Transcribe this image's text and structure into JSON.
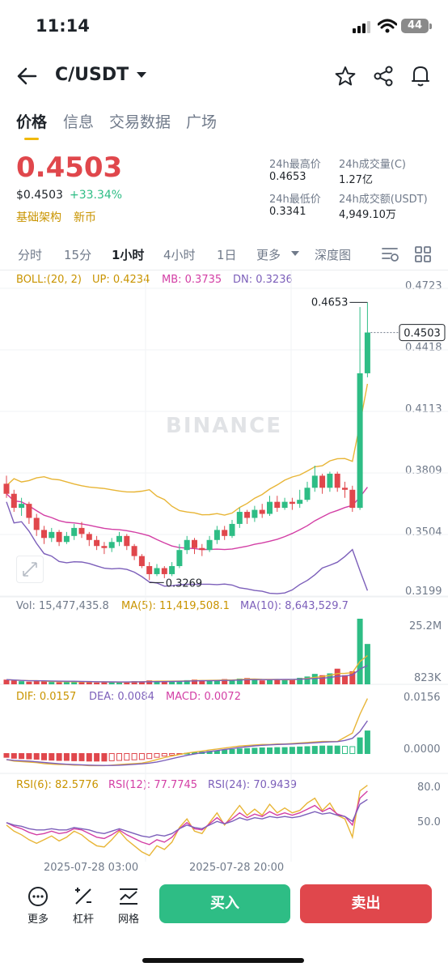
{
  "status_bar": {
    "time": "11:14",
    "battery": "44"
  },
  "header": {
    "title": "C/USDT"
  },
  "tabs": [
    "价格",
    "信息",
    "交易数据",
    "广场"
  ],
  "price": {
    "last": "0.4503",
    "usd": "$0.4503",
    "change": "+33.34%",
    "tags": [
      "基础架构",
      "新币"
    ]
  },
  "stats": {
    "high_label": "24h最高价",
    "high_value": "0.4653",
    "low_label": "24h最低价",
    "low_value": "0.3341",
    "vol_c_label": "24h成交量(C)",
    "vol_c_value": "1.27亿",
    "vol_usdt_label": "24h成交额(USDT)",
    "vol_usdt_value": "4,949.10万"
  },
  "intervals": [
    "分时",
    "15分",
    "1小时",
    "4小时",
    "1日",
    "更多",
    "深度图"
  ],
  "active_interval": "1小时",
  "boll_legend": {
    "boll": "BOLL:(20, 2)",
    "up": "UP: 0.4234",
    "mb": "MB: 0.3735",
    "dn": "DN: 0.3236"
  },
  "vol_legend": {
    "vol": "Vol: 15,477,435.8",
    "ma5": "MA(5): 11,419,508.1",
    "ma10": "MA(10): 8,643,529.7"
  },
  "macd_legend": {
    "dif": "DIF: 0.0157",
    "dea": "DEA: 0.0084",
    "macd": "MACD: 0.0072"
  },
  "rsi_legend": {
    "rsi6": "RSI(6): 82.5776",
    "rsi12": "RSI(12): 77.7745",
    "rsi24": "RSI(24): 70.9439"
  },
  "watermark": "BINANCE",
  "bottom_bar": {
    "more": "更多",
    "leverage": "杠杆",
    "grid": "网格",
    "buy": "买入",
    "sell": "卖出"
  },
  "colors": {
    "up": "#2ebd85",
    "down": "#e0474c",
    "accent": "#f0b90b",
    "boll_up": "#e8b536",
    "boll_mb": "#d33fa5",
    "boll_dn": "#7c5fba"
  },
  "chart_data": [
    {
      "type": "candlestick",
      "title": "",
      "price_axis_ticks": [
        "0.4723",
        "0.4418",
        "0.4113",
        "0.3809",
        "0.3504",
        "0.3199"
      ],
      "ylim": [
        0.3199,
        0.4723
      ],
      "x_labels": [
        "2025-07-28 03:00",
        "2025-07-28 20:00"
      ],
      "last_price_label": "0.4503",
      "max_label": "0.4653",
      "min_label": "0.3269",
      "candles": [
        [
          0.375,
          0.37,
          0.379,
          0.368
        ],
        [
          0.37,
          0.363,
          0.372,
          0.361
        ],
        [
          0.363,
          0.365,
          0.368,
          0.359
        ],
        [
          0.365,
          0.358,
          0.366,
          0.355
        ],
        [
          0.358,
          0.352,
          0.36,
          0.349
        ],
        [
          0.352,
          0.348,
          0.354,
          0.345
        ],
        [
          0.348,
          0.351,
          0.353,
          0.346
        ],
        [
          0.351,
          0.346,
          0.352,
          0.344
        ],
        [
          0.346,
          0.349,
          0.351,
          0.345
        ],
        [
          0.349,
          0.353,
          0.355,
          0.347
        ],
        [
          0.353,
          0.35,
          0.356,
          0.348
        ],
        [
          0.35,
          0.347,
          0.351,
          0.344
        ],
        [
          0.347,
          0.344,
          0.349,
          0.342
        ],
        [
          0.344,
          0.343,
          0.346,
          0.34
        ],
        [
          0.343,
          0.346,
          0.348,
          0.341
        ],
        [
          0.346,
          0.349,
          0.351,
          0.344
        ],
        [
          0.349,
          0.344,
          0.35,
          0.342
        ],
        [
          0.344,
          0.339,
          0.345,
          0.337
        ],
        [
          0.339,
          0.334,
          0.34,
          0.333
        ],
        [
          0.334,
          0.33,
          0.336,
          0.327
        ],
        [
          0.33,
          0.333,
          0.335,
          0.329
        ],
        [
          0.333,
          0.33,
          0.334,
          0.328
        ],
        [
          0.33,
          0.334,
          0.336,
          0.329
        ],
        [
          0.334,
          0.342,
          0.345,
          0.333
        ],
        [
          0.342,
          0.347,
          0.349,
          0.34
        ],
        [
          0.347,
          0.343,
          0.348,
          0.34
        ],
        [
          0.343,
          0.342,
          0.345,
          0.339
        ],
        [
          0.342,
          0.347,
          0.349,
          0.341
        ],
        [
          0.347,
          0.352,
          0.354,
          0.345
        ],
        [
          0.352,
          0.349,
          0.354,
          0.347
        ],
        [
          0.349,
          0.355,
          0.357,
          0.348
        ],
        [
          0.355,
          0.361,
          0.363,
          0.353
        ],
        [
          0.361,
          0.358,
          0.362,
          0.355
        ],
        [
          0.358,
          0.362,
          0.364,
          0.356
        ],
        [
          0.362,
          0.36,
          0.365,
          0.358
        ],
        [
          0.36,
          0.366,
          0.369,
          0.359
        ],
        [
          0.366,
          0.363,
          0.369,
          0.361
        ],
        [
          0.363,
          0.366,
          0.368,
          0.362
        ],
        [
          0.366,
          0.365,
          0.368,
          0.362
        ],
        [
          0.365,
          0.367,
          0.372,
          0.363
        ],
        [
          0.367,
          0.373,
          0.376,
          0.366
        ],
        [
          0.373,
          0.379,
          0.384,
          0.371
        ],
        [
          0.379,
          0.373,
          0.38,
          0.37
        ],
        [
          0.373,
          0.38,
          0.381,
          0.371
        ],
        [
          0.38,
          0.373,
          0.381,
          0.371
        ],
        [
          0.373,
          0.372,
          0.376,
          0.368
        ],
        [
          0.372,
          0.363,
          0.374,
          0.361
        ],
        [
          0.363,
          0.43,
          0.463,
          0.362
        ],
        [
          0.43,
          0.4503,
          0.4653,
          0.428
        ]
      ]
    },
    {
      "type": "bar",
      "title": "Vol",
      "axis_ticks": [
        "25.2M",
        "823K"
      ],
      "ylim": [
        0,
        25.2
      ],
      "values_millions": [
        1.8,
        1.5,
        1.2,
        1.0,
        1.4,
        1.1,
        0.9,
        0.8,
        1.0,
        1.2,
        1.0,
        0.9,
        0.7,
        0.8,
        0.9,
        0.8,
        1.0,
        1.2,
        1.1,
        1.5,
        1.3,
        1.0,
        1.2,
        1.4,
        1.6,
        1.8,
        1.5,
        1.4,
        1.6,
        2.0,
        1.8,
        2.2,
        2.4,
        1.8,
        1.5,
        1.6,
        2.0,
        1.8,
        2.0,
        2.5,
        3.0,
        4.0,
        3.5,
        4.2,
        6.0,
        3.5,
        5.0,
        25.2,
        15.5
      ]
    },
    {
      "type": "bar",
      "title": "MACD",
      "axis_ticks": [
        "0.0156",
        "0.0000"
      ],
      "ylim": [
        -0.004,
        0.0156
      ],
      "values": [
        -0.0012,
        -0.0015,
        -0.0016,
        -0.0017,
        -0.0018,
        -0.002,
        -0.0021,
        -0.0022,
        -0.0022,
        -0.0023,
        -0.0023,
        -0.0024,
        -0.0024,
        -0.0024,
        -0.0023,
        -0.0022,
        -0.0021,
        -0.002,
        -0.0019,
        -0.0016,
        -0.0012,
        -0.0008,
        -0.0005,
        -0.0002,
        0.0001,
        0.0003,
        0.0005,
        0.0007,
        0.0009,
        0.0011,
        0.0013,
        0.0015,
        0.0016,
        0.0017,
        0.0018,
        0.0018,
        0.0019,
        0.0019,
        0.002,
        0.0021,
        0.0022,
        0.0023,
        0.0024,
        0.0024,
        0.0024,
        0.0023,
        0.0022,
        0.005,
        0.0072
      ]
    },
    {
      "type": "line",
      "title": "RSI",
      "axis_ticks": [
        "80.0",
        "50.0"
      ],
      "ylim": [
        20,
        85
      ],
      "rsi6": [
        50,
        45,
        42,
        38,
        35,
        38,
        41,
        37,
        40,
        45,
        42,
        37,
        33,
        32,
        38,
        45,
        38,
        33,
        28,
        25,
        33,
        30,
        36,
        48,
        55,
        45,
        43,
        52,
        60,
        50,
        58,
        66,
        58,
        63,
        58,
        67,
        60,
        64,
        60,
        62,
        68,
        72,
        62,
        68,
        58,
        55,
        40,
        78,
        82.5776
      ],
      "rsi12": [
        52,
        49,
        47,
        44,
        42,
        43,
        45,
        43,
        44,
        47,
        46,
        43,
        40,
        39,
        42,
        46,
        42,
        39,
        36,
        34,
        38,
        36,
        40,
        47,
        52,
        47,
        46,
        51,
        56,
        51,
        55,
        60,
        56,
        59,
        57,
        61,
        58,
        60,
        58,
        60,
        63,
        66,
        61,
        64,
        59,
        57,
        50,
        72,
        77.7745
      ],
      "rsi24": [
        52,
        50,
        49,
        47,
        46,
        46,
        47,
        46,
        46,
        48,
        47,
        46,
        44,
        43,
        45,
        47,
        45,
        43,
        41,
        40,
        42,
        41,
        43,
        47,
        50,
        48,
        47,
        50,
        53,
        51,
        53,
        56,
        54,
        56,
        55,
        57,
        56,
        57,
        56,
        57,
        59,
        61,
        59,
        60,
        58,
        57,
        53,
        67,
        70.9439
      ]
    }
  ]
}
